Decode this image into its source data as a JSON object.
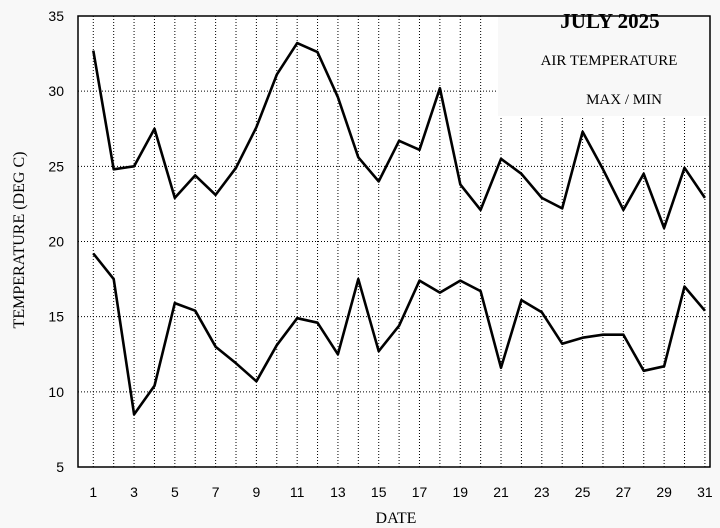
{
  "chart_data": {
    "type": "line",
    "title": "JULY 2025",
    "subtitle_lines": [
      "AIR TEMPERATURE",
      "MAX / MIN"
    ],
    "xlabel": "DATE",
    "ylabel": "TEMPERATURE (DEG C)",
    "xlim": [
      0.25,
      31.25
    ],
    "ylim": [
      5,
      35
    ],
    "x_ticks": [
      1,
      3,
      5,
      7,
      9,
      11,
      13,
      15,
      17,
      19,
      21,
      23,
      25,
      27,
      29,
      31
    ],
    "y_ticks": [
      5,
      10,
      15,
      20,
      25,
      30,
      35
    ],
    "grid": true,
    "x": [
      1,
      2,
      3,
      4,
      5,
      6,
      7,
      8,
      9,
      10,
      11,
      12,
      13,
      14,
      15,
      16,
      17,
      18,
      19,
      20,
      21,
      22,
      23,
      24,
      25,
      26,
      27,
      28,
      29,
      30,
      31
    ],
    "series": [
      {
        "values": [
          32.7,
          24.8,
          25.0,
          27.5,
          22.9,
          24.4,
          23.1,
          24.9,
          27.6,
          31.1,
          33.2,
          32.6,
          29.6,
          25.6,
          24.0,
          26.7,
          26.1,
          30.2,
          23.8,
          22.1,
          25.5,
          24.5,
          22.9,
          22.2,
          27.3,
          24.8,
          22.1,
          24.5,
          20.9,
          24.9,
          22.9
        ],
        "color": "#000000"
      },
      {
        "values": [
          19.2,
          17.5,
          8.5,
          10.4,
          15.9,
          15.4,
          13.0,
          11.9,
          10.7,
          13.1,
          14.9,
          14.6,
          12.5,
          17.5,
          12.7,
          14.4,
          17.4,
          16.6,
          17.4,
          16.7,
          11.6,
          16.1,
          15.3,
          13.2,
          13.6,
          13.8,
          13.8,
          11.4,
          11.7,
          17.0,
          15.4
        ],
        "color": "#000000"
      }
    ]
  }
}
